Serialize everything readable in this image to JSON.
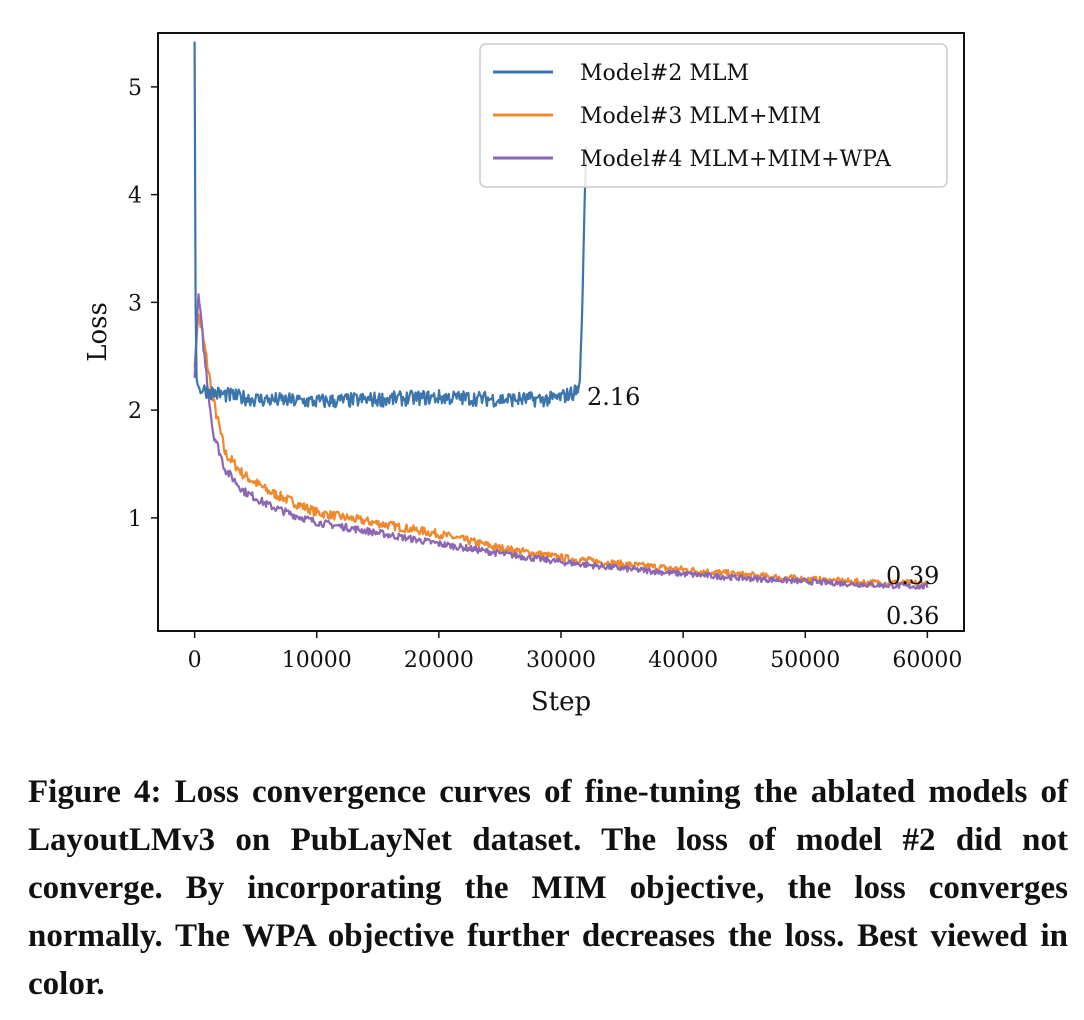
{
  "chart_data": {
    "type": "line",
    "xlabel": "Step",
    "ylabel": "Loss",
    "xlim": [
      -3000,
      63000
    ],
    "ylim": [
      -0.05,
      5.5
    ],
    "xticks": [
      0,
      10000,
      20000,
      30000,
      40000,
      50000,
      60000
    ],
    "xtick_labels": [
      "0",
      "10000",
      "20000",
      "30000",
      "40000",
      "50000",
      "60000"
    ],
    "yticks": [
      1,
      2,
      3,
      4,
      5
    ],
    "ytick_labels": [
      "1",
      "2",
      "3",
      "4",
      "5"
    ],
    "legend_position": "top-right",
    "series": [
      {
        "name": "Model#2 MLM",
        "color": "#3a75ad",
        "x": [
          0,
          100,
          200,
          400,
          1000,
          2000,
          5000,
          10000,
          15000,
          20000,
          25000,
          29000,
          30000,
          31000,
          31500,
          31700,
          31800,
          31900,
          32000,
          32100
        ],
        "y": [
          5.42,
          2.35,
          2.25,
          2.2,
          2.18,
          2.15,
          2.1,
          2.08,
          2.1,
          2.12,
          2.1,
          2.1,
          2.12,
          2.16,
          2.2,
          2.8,
          3.2,
          3.8,
          4.2,
          4.45
        ],
        "noise": 0.07
      },
      {
        "name": "Model#3 MLM+MIM",
        "color": "#f0882c",
        "x": [
          0,
          300,
          800,
          1500,
          2500,
          4000,
          6000,
          8000,
          10000,
          15000,
          20000,
          25000,
          30000,
          35000,
          40000,
          45000,
          50000,
          55000,
          60000
        ],
        "y": [
          2.4,
          2.9,
          2.6,
          2.1,
          1.6,
          1.4,
          1.25,
          1.15,
          1.05,
          0.95,
          0.85,
          0.72,
          0.63,
          0.57,
          0.52,
          0.47,
          0.43,
          0.4,
          0.39
        ],
        "noise": 0.06
      },
      {
        "name": "Model#4 MLM+MIM+WPA",
        "color": "#8c67b5",
        "x": [
          0,
          300,
          800,
          1500,
          2500,
          4000,
          6000,
          8000,
          10000,
          15000,
          20000,
          25000,
          30000,
          35000,
          40000,
          45000,
          50000,
          55000,
          60000
        ],
        "y": [
          2.3,
          3.1,
          2.5,
          1.8,
          1.45,
          1.25,
          1.12,
          1.03,
          0.96,
          0.86,
          0.76,
          0.67,
          0.59,
          0.53,
          0.48,
          0.44,
          0.41,
          0.38,
          0.36
        ],
        "noise": 0.05
      }
    ],
    "annotations": [
      {
        "text": "2.16",
        "x": 32000,
        "y": 2.16
      },
      {
        "text": "0.39",
        "x": 60000,
        "y": 0.39
      },
      {
        "text": "0.36",
        "x": 60000,
        "y": 0.36
      }
    ]
  },
  "caption": "Figure 4: Loss convergence curves of fine-tuning the ablated models of LayoutLMv3 on PubLayNet dataset. The loss of model #2 did not converge. By incorporating the MIM objective, the loss converges normally. The WPA objective further decreases the loss. Best viewed in color."
}
